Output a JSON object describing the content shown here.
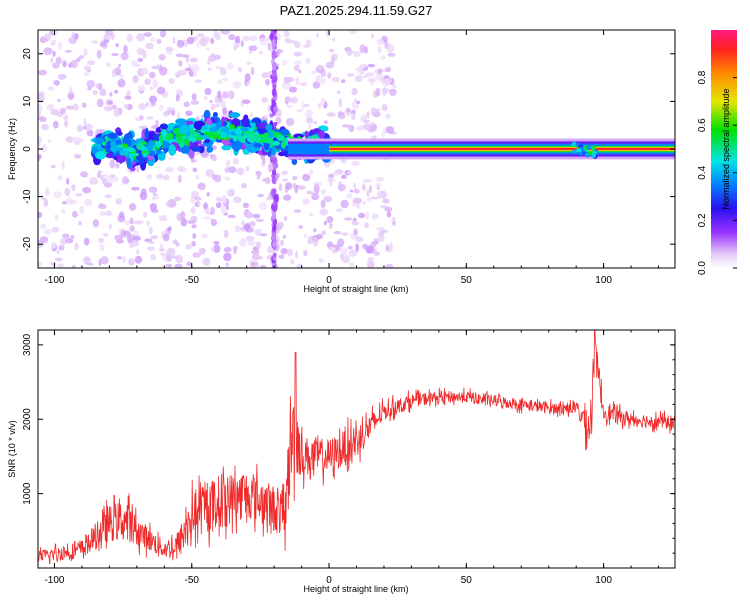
{
  "chart_data": [
    {
      "type": "heatmap",
      "title": "PAZ1.2025.294.11.59.G27",
      "xlabel": "Height of straight line (km)",
      "ylabel": "Frequency (Hz)",
      "xlim": [
        -106,
        126
      ],
      "ylim": [
        -25,
        25
      ],
      "x_ticks": [
        "-100",
        "-50",
        "0",
        "50",
        "100"
      ],
      "x_tick_values": [
        -100,
        -50,
        0,
        50,
        100
      ],
      "y_ticks": [
        "20",
        "10",
        "0",
        "-10",
        "-20"
      ],
      "y_tick_values": [
        20,
        10,
        0,
        -10,
        -20
      ],
      "colorbar": {
        "label": "Normalized spectral amplitude",
        "range": [
          0,
          1
        ],
        "ticks": [
          "0.0",
          "0.2",
          "0.4",
          "0.6",
          "0.8"
        ],
        "tick_values": [
          0.0,
          0.2,
          0.4,
          0.6,
          0.8
        ]
      },
      "ridge": {
        "x": [
          -90,
          -80,
          -70,
          -60,
          -50,
          -40,
          -30,
          -20,
          -10,
          0,
          10,
          20,
          50,
          90,
          96,
          126
        ],
        "frequency": [
          0,
          1,
          -1,
          2,
          3,
          4,
          3,
          2,
          1,
          0.5,
          0.5,
          0,
          0,
          0.5,
          -1,
          0
        ]
      }
    },
    {
      "type": "line",
      "title": "",
      "xlabel": "Height of straight line (km)",
      "ylabel": "SNR (10 * v/v)",
      "xlim": [
        -106,
        126
      ],
      "ylim": [
        0,
        3200
      ],
      "x_ticks": [
        "-100",
        "-50",
        "0",
        "50",
        "100"
      ],
      "x_tick_values": [
        -100,
        -50,
        0,
        50,
        100
      ],
      "y_ticks": [
        "3000",
        "2000",
        "1000"
      ],
      "y_tick_values": [
        3000,
        2000,
        1000
      ],
      "color": "#ee2a2a",
      "envelope": {
        "x": [
          -106,
          -90,
          -80,
          -74,
          -70,
          -60,
          -55,
          -50,
          -40,
          -30,
          -20,
          -16,
          -14,
          -12,
          -10,
          0,
          10,
          20,
          30,
          40,
          50,
          60,
          70,
          80,
          90,
          95,
          97,
          100,
          110,
          126
        ],
        "mean": [
          150,
          250,
          600,
          650,
          500,
          250,
          300,
          700,
          900,
          1000,
          800,
          700,
          1700,
          1800,
          1500,
          1500,
          1700,
          2100,
          2250,
          2300,
          2300,
          2250,
          2200,
          2150,
          2150,
          1900,
          2900,
          2100,
          2000,
          1950
        ],
        "spread": [
          100,
          150,
          300,
          350,
          250,
          150,
          250,
          400,
          450,
          400,
          400,
          400,
          900,
          700,
          350,
          300,
          300,
          150,
          120,
          100,
          100,
          100,
          100,
          100,
          100,
          400,
          300,
          150,
          120,
          120
        ]
      }
    }
  ]
}
